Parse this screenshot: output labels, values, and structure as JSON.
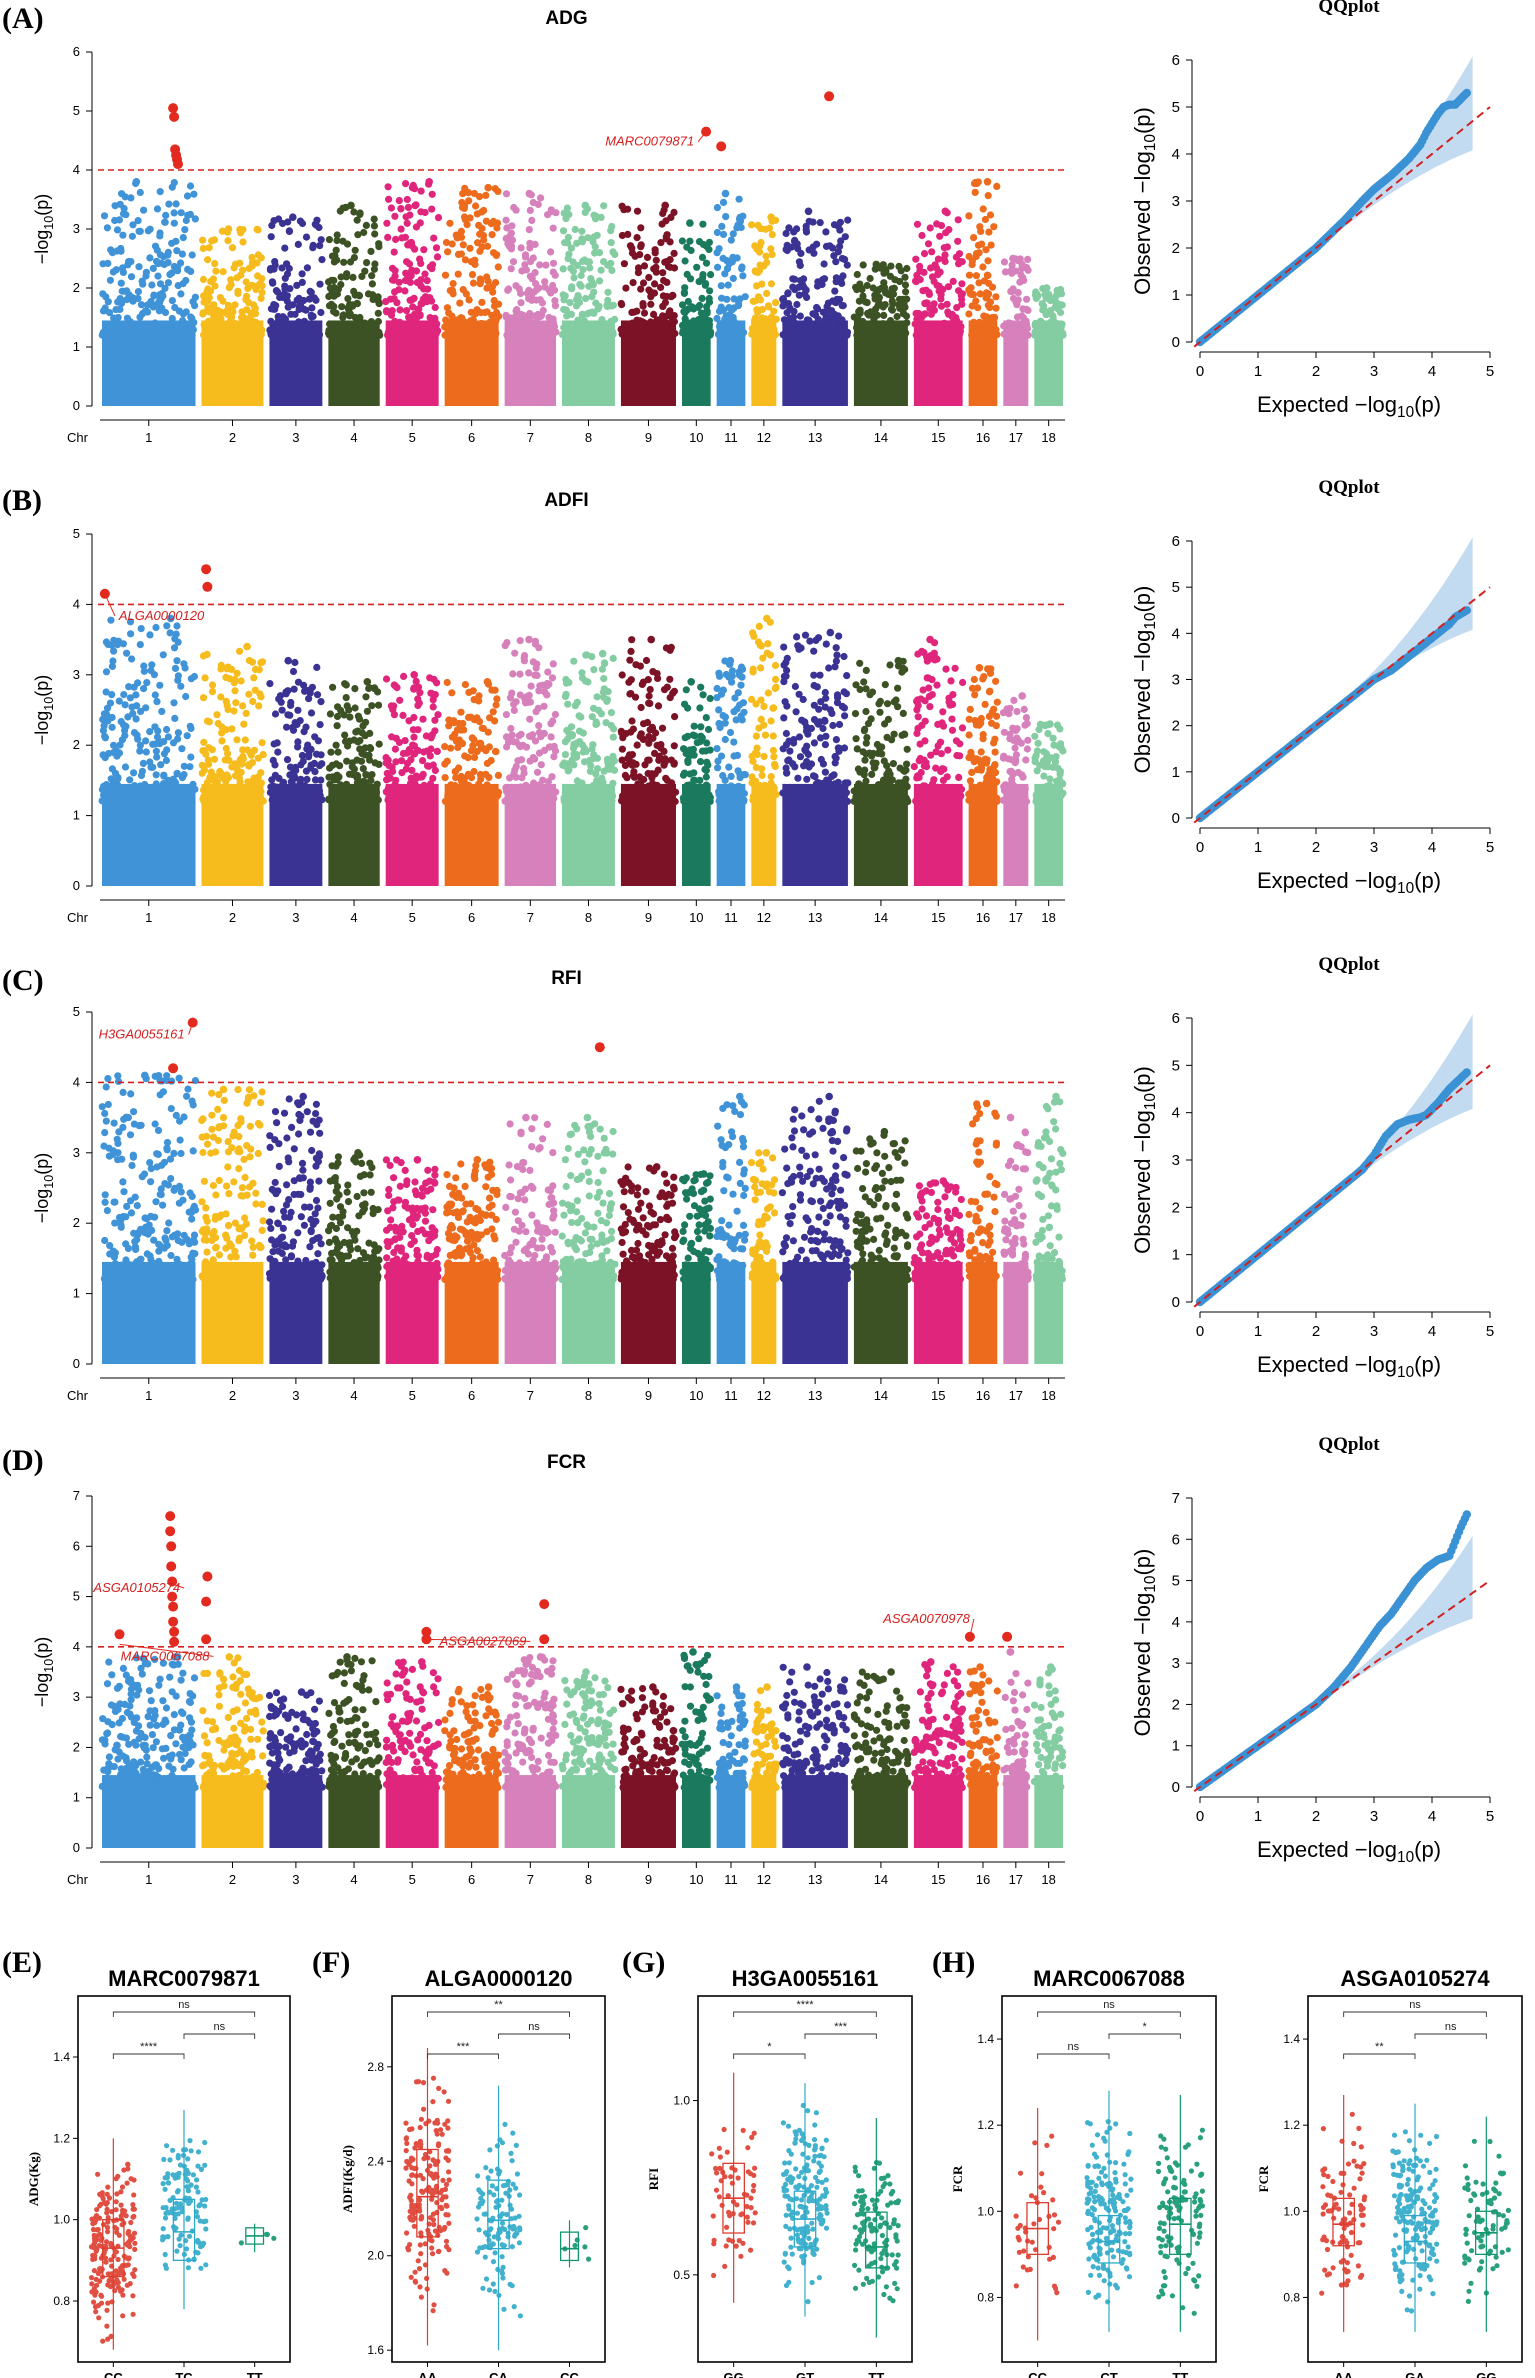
{
  "panel_labels": [
    "(A)",
    "(B)",
    "(C)",
    "(D)",
    "(E)",
    "(F)",
    "(G)",
    "(H)"
  ],
  "colors": {
    "chromosomes": [
      "#3f93d6",
      "#f6bb1c",
      "#3b3393",
      "#3c5224",
      "#e0257c",
      "#ec6b1c",
      "#d681bb",
      "#84cca2",
      "#7c1225",
      "#1b7a5d",
      "#3f93d6",
      "#f6bb1c",
      "#3b3393",
      "#3c5224",
      "#e0257c",
      "#ec6b1c",
      "#d681bb",
      "#84cca2"
    ],
    "significant": "#e32a1f",
    "threshold_line": "#d32020",
    "qq_points": "#3a92d4",
    "qq_band": "#b9d5ee",
    "box_groups": [
      "#dd3d2e",
      "#2ea9c9",
      "#12966f"
    ]
  },
  "manhattan_common": {
    "chr_axis_label": "Chr",
    "chromosomes": [
      "1",
      "2",
      "3",
      "4",
      "5",
      "6",
      "7",
      "8",
      "9",
      "10",
      "11",
      "12",
      "13",
      "14",
      "15",
      "16",
      "17",
      "18"
    ],
    "ylabel": "-log10(p)",
    "threshold": 4
  },
  "chart_data": [
    {
      "type": "scatter",
      "subtype": "manhattan",
      "panel": "(A)",
      "title": "ADG",
      "ylim": [
        0,
        6
      ],
      "yticks": [
        "0",
        "1",
        "2",
        "3",
        "4",
        "5",
        "6"
      ],
      "threshold": 4,
      "chr_max": [
        3.8,
        3.0,
        3.2,
        3.4,
        3.8,
        3.7,
        3.6,
        3.4,
        3.4,
        3.1,
        3.6,
        3.2,
        3.3,
        2.4,
        3.3,
        3.8,
        2.5,
        2.0
      ],
      "hits": [
        {
          "chr": "1",
          "pos": 0.75,
          "y": 5.05
        },
        {
          "chr": "1",
          "pos": 0.76,
          "y": 4.9
        },
        {
          "chr": "1",
          "pos": 0.77,
          "y": 4.35
        },
        {
          "chr": "1",
          "pos": 0.78,
          "y": 4.25
        },
        {
          "chr": "1",
          "pos": 0.79,
          "y": 4.18
        },
        {
          "chr": "1",
          "pos": 0.8,
          "y": 4.1
        },
        {
          "chr": "10",
          "pos": 0.8,
          "y": 4.65
        },
        {
          "chr": "11",
          "pos": 0.2,
          "y": 4.4
        },
        {
          "chr": "13",
          "pos": 0.7,
          "y": 5.25
        }
      ],
      "labels": [
        {
          "text": "MARC0079871",
          "chr": "10",
          "pos": 0.8,
          "y": 4.65
        }
      ]
    },
    {
      "type": "scatter",
      "subtype": "manhattan",
      "panel": "(B)",
      "title": "ADFI",
      "ylim": [
        0,
        5
      ],
      "yticks": [
        "0",
        "1",
        "2",
        "3",
        "4",
        "5"
      ],
      "threshold": 4,
      "chr_max": [
        3.8,
        3.4,
        3.2,
        2.9,
        3.0,
        2.9,
        3.5,
        3.3,
        3.5,
        2.9,
        3.2,
        3.8,
        3.6,
        3.2,
        3.5,
        3.1,
        2.7,
        2.3
      ],
      "hits": [
        {
          "chr": "1",
          "pos": 0.05,
          "y": 4.15
        },
        {
          "chr": "2",
          "pos": 0.1,
          "y": 4.5
        },
        {
          "chr": "2",
          "pos": 0.12,
          "y": 4.25
        }
      ],
      "labels": [
        {
          "text": "ALGA0000120",
          "chr": "1",
          "pos": 0.05,
          "y": 4.15
        }
      ]
    },
    {
      "type": "scatter",
      "subtype": "manhattan",
      "panel": "(C)",
      "title": "RFI",
      "ylim": [
        0,
        5
      ],
      "yticks": [
        "0",
        "1",
        "2",
        "3",
        "4",
        "5"
      ],
      "threshold": 4,
      "chr_max": [
        4.1,
        3.9,
        3.8,
        3.0,
        2.9,
        2.9,
        3.5,
        3.5,
        2.8,
        2.7,
        3.8,
        3.0,
        3.8,
        3.3,
        2.6,
        3.7,
        3.5,
        3.8
      ],
      "hits": [
        {
          "chr": "1",
          "pos": 0.75,
          "y": 4.2
        },
        {
          "chr": "1",
          "pos": 0.95,
          "y": 4.85
        },
        {
          "chr": "8",
          "pos": 0.7,
          "y": 4.5
        }
      ],
      "labels": [
        {
          "text": "H3GA0055161",
          "chr": "1",
          "pos": 0.95,
          "y": 4.85
        }
      ]
    },
    {
      "type": "scatter",
      "subtype": "manhattan",
      "panel": "(D)",
      "title": "FCR",
      "ylim": [
        0,
        7
      ],
      "yticks": [
        "0",
        "1",
        "2",
        "3",
        "4",
        "5",
        "6",
        "7"
      ],
      "threshold": 4,
      "chr_max": [
        3.8,
        3.8,
        3.1,
        3.8,
        3.7,
        3.2,
        3.8,
        3.5,
        3.2,
        3.9,
        3.2,
        3.2,
        3.6,
        3.5,
        3.7,
        3.6,
        3.9,
        3.6
      ],
      "hits": [
        {
          "chr": "1",
          "pos": 0.2,
          "y": 4.25
        },
        {
          "chr": "1",
          "pos": 0.72,
          "y": 6.6
        },
        {
          "chr": "1",
          "pos": 0.72,
          "y": 6.3
        },
        {
          "chr": "1",
          "pos": 0.73,
          "y": 6.0
        },
        {
          "chr": "1",
          "pos": 0.73,
          "y": 5.6
        },
        {
          "chr": "1",
          "pos": 0.74,
          "y": 5.3
        },
        {
          "chr": "1",
          "pos": 0.74,
          "y": 5.0
        },
        {
          "chr": "1",
          "pos": 0.75,
          "y": 4.8
        },
        {
          "chr": "1",
          "pos": 0.75,
          "y": 4.5
        },
        {
          "chr": "1",
          "pos": 0.76,
          "y": 4.3
        },
        {
          "chr": "1",
          "pos": 0.76,
          "y": 4.1
        },
        {
          "chr": "2",
          "pos": 0.12,
          "y": 5.4
        },
        {
          "chr": "2",
          "pos": 0.1,
          "y": 4.9
        },
        {
          "chr": "2",
          "pos": 0.1,
          "y": 4.15
        },
        {
          "chr": "5",
          "pos": 0.75,
          "y": 4.3
        },
        {
          "chr": "5",
          "pos": 0.75,
          "y": 4.15
        },
        {
          "chr": "7",
          "pos": 0.75,
          "y": 4.85
        },
        {
          "chr": "7",
          "pos": 0.75,
          "y": 4.15
        },
        {
          "chr": "16",
          "pos": 0.1,
          "y": 4.2
        },
        {
          "chr": "17",
          "pos": 0.2,
          "y": 4.2
        }
      ],
      "labels": [
        {
          "text": "ASGA0105274",
          "chr": "1",
          "pos": 0.74,
          "y": 5.25
        },
        {
          "text": "MARC0067088",
          "chr": "1",
          "pos": 0.2,
          "y": 4.05
        },
        {
          "text": "ASGA0027069",
          "chr": "5",
          "pos": 0.75,
          "y": 4.15
        },
        {
          "text": "ASGA0070978",
          "chr": "16",
          "pos": 0.1,
          "y": 4.2
        }
      ]
    },
    {
      "type": "scatter",
      "subtype": "qqplot",
      "panel": "(A)",
      "title": "QQplot",
      "xlabel": "Expected -log10(p)",
      "ylabel": "Observed -log10(p)",
      "xlim": [
        0,
        5
      ],
      "ylim": [
        0,
        6
      ],
      "xticks": [
        "0",
        "1",
        "2",
        "3",
        "4",
        "5"
      ],
      "yticks": [
        "0",
        "1",
        "2",
        "3",
        "4",
        "5",
        "6"
      ],
      "x": [
        0,
        0.5,
        1,
        1.5,
        2,
        2.5,
        2.8,
        3.0,
        3.3,
        3.6,
        3.8,
        3.9,
        4.0,
        4.1,
        4.2,
        4.3,
        4.4,
        4.6
      ],
      "y": [
        0,
        0.5,
        1,
        1.5,
        2,
        2.6,
        3.0,
        3.25,
        3.55,
        3.9,
        4.2,
        4.45,
        4.65,
        4.85,
        5.0,
        5.05,
        5.05,
        5.3
      ]
    },
    {
      "type": "scatter",
      "subtype": "qqplot",
      "panel": "(B)",
      "title": "QQplot",
      "xlabel": "Expected -log10(p)",
      "ylabel": "Observed -log10(p)",
      "xlim": [
        0,
        5
      ],
      "ylim": [
        0,
        6
      ],
      "xticks": [
        "0",
        "1",
        "2",
        "3",
        "4",
        "5"
      ],
      "yticks": [
        "0",
        "1",
        "2",
        "3",
        "4",
        "5",
        "6"
      ],
      "x": [
        0,
        0.5,
        1,
        1.5,
        2,
        2.5,
        2.8,
        3.0,
        3.3,
        3.6,
        3.9,
        4.1,
        4.3,
        4.4,
        4.6
      ],
      "y": [
        0,
        0.5,
        1,
        1.5,
        2,
        2.5,
        2.8,
        3.0,
        3.2,
        3.5,
        3.8,
        4.0,
        4.2,
        4.35,
        4.5
      ]
    },
    {
      "type": "scatter",
      "subtype": "qqplot",
      "panel": "(C)",
      "title": "QQplot",
      "xlabel": "Expected -log10(p)",
      "ylabel": "Observed -log10(p)",
      "xlim": [
        0,
        5
      ],
      "ylim": [
        0,
        6
      ],
      "xticks": [
        "0",
        "1",
        "2",
        "3",
        "4",
        "5"
      ],
      "yticks": [
        "0",
        "1",
        "2",
        "3",
        "4",
        "5",
        "6"
      ],
      "x": [
        0,
        0.5,
        1,
        1.5,
        2,
        2.5,
        2.8,
        3.0,
        3.2,
        3.4,
        3.6,
        3.8,
        3.9,
        4.1,
        4.3,
        4.6
      ],
      "y": [
        0,
        0.5,
        1,
        1.5,
        2,
        2.5,
        2.8,
        3.1,
        3.5,
        3.75,
        3.85,
        3.9,
        3.95,
        4.2,
        4.5,
        4.85
      ]
    },
    {
      "type": "scatter",
      "subtype": "qqplot",
      "panel": "(D)",
      "title": "QQplot",
      "xlabel": "Expected -log10(p)",
      "ylabel": "Observed -log10(p)",
      "xlim": [
        0,
        5
      ],
      "ylim": [
        0,
        7
      ],
      "xticks": [
        "0",
        "1",
        "2",
        "3",
        "4",
        "5"
      ],
      "yticks": [
        "0",
        "1",
        "2",
        "3",
        "4",
        "5",
        "6",
        "7"
      ],
      "x": [
        0,
        0.5,
        1,
        1.5,
        2,
        2.3,
        2.6,
        2.9,
        3.1,
        3.3,
        3.5,
        3.7,
        3.9,
        4.1,
        4.3,
        4.5,
        4.6
      ],
      "y": [
        0,
        0.5,
        1,
        1.5,
        2,
        2.4,
        2.9,
        3.5,
        3.9,
        4.2,
        4.6,
        5.0,
        5.3,
        5.5,
        5.6,
        6.3,
        6.6
      ]
    },
    {
      "type": "box",
      "panel": "(E)",
      "title": "MARC0079871",
      "ylabel": "ADG(Kg)",
      "ylim": [
        0.65,
        1.55
      ],
      "yticks": [
        0.8,
        1.0,
        1.2,
        1.4
      ],
      "ytick_labels": [
        "0.8",
        "1.0",
        "1.2",
        "1.4"
      ],
      "categories": [
        "CC",
        "TC",
        "TT"
      ],
      "boxes": [
        {
          "n": 200,
          "min": 0.68,
          "q1": 0.86,
          "median": 0.93,
          "q3": 1.0,
          "max": 1.2
        },
        {
          "n": 120,
          "min": 0.78,
          "q1": 0.9,
          "median": 0.97,
          "q3": 1.05,
          "max": 1.27
        },
        {
          "n": 4,
          "min": 0.92,
          "q1": 0.94,
          "median": 0.96,
          "q3": 0.98,
          "max": 0.99
        }
      ],
      "comparisons": [
        {
          "pair": [
            0,
            1
          ],
          "label": "****"
        },
        {
          "pair": [
            1,
            2
          ],
          "label": "ns"
        },
        {
          "pair": [
            0,
            2
          ],
          "label": "ns"
        }
      ]
    },
    {
      "type": "box",
      "panel": "(F)",
      "title": "ALGA0000120",
      "ylabel": "ADFI(Kg/d)",
      "ylim": [
        1.55,
        3.1
      ],
      "yticks": [
        1.6,
        2.0,
        2.4,
        2.8
      ],
      "ytick_labels": [
        "1.6",
        "2.0",
        "2.4",
        "2.8"
      ],
      "categories": [
        "AA",
        "CA",
        "CC"
      ],
      "boxes": [
        {
          "n": 180,
          "min": 1.62,
          "q1": 2.08,
          "median": 2.25,
          "q3": 2.45,
          "max": 2.88
        },
        {
          "n": 120,
          "min": 1.6,
          "q1": 2.03,
          "median": 2.15,
          "q3": 2.32,
          "max": 2.72
        },
        {
          "n": 6,
          "min": 1.95,
          "q1": 1.98,
          "median": 2.03,
          "q3": 2.1,
          "max": 2.15
        }
      ],
      "comparisons": [
        {
          "pair": [
            0,
            1
          ],
          "label": "***"
        },
        {
          "pair": [
            1,
            2
          ],
          "label": "ns"
        },
        {
          "pair": [
            0,
            2
          ],
          "label": "**"
        }
      ]
    },
    {
      "type": "box",
      "panel": "(G)",
      "title": "H3GA0055161",
      "ylabel": "RFI",
      "ylim": [
        0.25,
        1.3
      ],
      "yticks": [
        0.5,
        1.0
      ],
      "ytick_labels": [
        "0.5",
        "1.0"
      ],
      "categories": [
        "GG",
        "GT",
        "TT"
      ],
      "boxes": [
        {
          "n": 60,
          "min": 0.42,
          "q1": 0.62,
          "median": 0.72,
          "q3": 0.82,
          "max": 1.08
        },
        {
          "n": 180,
          "min": 0.38,
          "q1": 0.58,
          "median": 0.66,
          "q3": 0.74,
          "max": 1.05
        },
        {
          "n": 120,
          "min": 0.32,
          "q1": 0.52,
          "median": 0.58,
          "q3": 0.68,
          "max": 0.95
        }
      ],
      "comparisons": [
        {
          "pair": [
            0,
            1
          ],
          "label": "*"
        },
        {
          "pair": [
            1,
            2
          ],
          "label": "***"
        },
        {
          "pair": [
            0,
            2
          ],
          "label": "****"
        }
      ]
    },
    {
      "type": "box",
      "panel": "(H)",
      "title": "MARC0067088",
      "ylabel": "FCR",
      "ylim": [
        0.65,
        1.5
      ],
      "yticks": [
        0.8,
        1.0,
        1.2,
        1.4
      ],
      "ytick_labels": [
        "0.8",
        "1.0",
        "1.2",
        "1.4"
      ],
      "categories": [
        "CC",
        "CT",
        "TT"
      ],
      "boxes": [
        {
          "n": 40,
          "min": 0.7,
          "q1": 0.9,
          "median": 0.96,
          "q3": 1.02,
          "max": 1.24
        },
        {
          "n": 180,
          "min": 0.72,
          "q1": 0.88,
          "median": 0.93,
          "q3": 0.99,
          "max": 1.28
        },
        {
          "n": 120,
          "min": 0.72,
          "q1": 0.9,
          "median": 0.97,
          "q3": 1.03,
          "max": 1.27
        }
      ],
      "comparisons": [
        {
          "pair": [
            0,
            1
          ],
          "label": "ns"
        },
        {
          "pair": [
            1,
            2
          ],
          "label": "*"
        },
        {
          "pair": [
            0,
            2
          ],
          "label": "ns"
        }
      ]
    },
    {
      "type": "box",
      "panel": "(H)",
      "title": "ASGA0105274",
      "ylabel": "FCR",
      "ylim": [
        0.65,
        1.5
      ],
      "yticks": [
        0.8,
        1.0,
        1.2,
        1.4
      ],
      "ytick_labels": [
        "0.8",
        "1.0",
        "1.2",
        "1.4"
      ],
      "categories": [
        "AA",
        "GA",
        "GG"
      ],
      "boxes": [
        {
          "n": 90,
          "min": 0.72,
          "q1": 0.92,
          "median": 0.97,
          "q3": 1.03,
          "max": 1.27
        },
        {
          "n": 180,
          "min": 0.72,
          "q1": 0.88,
          "median": 0.93,
          "q3": 0.99,
          "max": 1.25
        },
        {
          "n": 80,
          "min": 0.72,
          "q1": 0.9,
          "median": 0.95,
          "q3": 1.0,
          "max": 1.22
        }
      ],
      "comparisons": [
        {
          "pair": [
            0,
            1
          ],
          "label": "**"
        },
        {
          "pair": [
            1,
            2
          ],
          "label": "ns"
        },
        {
          "pair": [
            0,
            2
          ],
          "label": "ns"
        }
      ]
    }
  ]
}
